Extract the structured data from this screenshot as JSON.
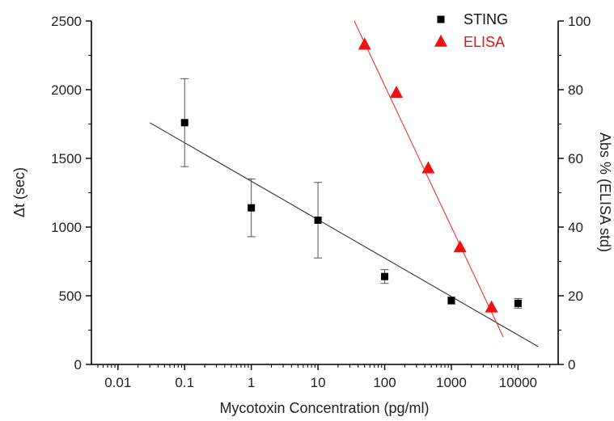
{
  "chart_data": {
    "type": "scatter",
    "xlabel": "Mycotoxin Concentration (pg/ml)",
    "ylabel_left": "Δt (sec)",
    "ylabel_right": "Abs % (ELISA std)",
    "x_scale": "log",
    "xlim": [
      0.004,
      40000
    ],
    "ylim_left": [
      0,
      2500
    ],
    "ylim_right": [
      0,
      100
    ],
    "x_ticks": [
      0.01,
      0.1,
      1,
      10,
      100,
      1000,
      10000
    ],
    "x_tick_labels": [
      "0.01",
      "0.1",
      "1",
      "10",
      "100",
      "1000",
      "10000"
    ],
    "y_left_ticks": [
      0,
      500,
      1000,
      1500,
      2000,
      2500
    ],
    "y_left_tick_labels": [
      "0",
      "500",
      "1000",
      "1500",
      "2000",
      "2500"
    ],
    "y_right_ticks": [
      0,
      20,
      40,
      60,
      80,
      100
    ],
    "y_right_tick_labels": [
      "0",
      "20",
      "40",
      "60",
      "80",
      "100"
    ],
    "legend_position": "top-right",
    "grid": false,
    "series": [
      {
        "name": "STING",
        "axis": "left",
        "marker": "square",
        "color": "#000000",
        "x": [
          0.1,
          1,
          10,
          100,
          1000,
          10000
        ],
        "y": [
          1760,
          1140,
          1050,
          640,
          465,
          445
        ],
        "err": [
          320,
          210,
          275,
          50,
          25,
          35
        ],
        "fit": {
          "x": [
            0.03,
            20000
          ],
          "y": [
            1760,
            130
          ],
          "color": "#333333"
        }
      },
      {
        "name": "ELISA",
        "axis": "right",
        "marker": "triangle",
        "color": "#ee1111",
        "x": [
          50,
          150,
          450,
          1350,
          4000
        ],
        "y": [
          93,
          79,
          57,
          34,
          16.5
        ],
        "fit": {
          "x": [
            35,
            6000
          ],
          "y": [
            100,
            8
          ],
          "color": "#ee3333"
        }
      }
    ]
  }
}
